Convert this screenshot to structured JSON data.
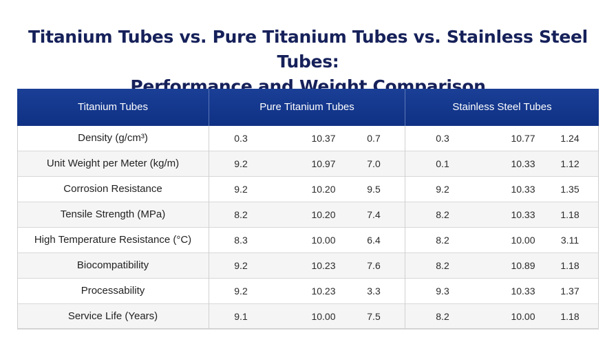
{
  "title": {
    "line1": "Titanium Tubes vs. Pure Titanium Tubes vs. Stainless Steel Tubes:",
    "line2": "Performance and Weight Comparison"
  },
  "columns": [
    "Titanium Tubes",
    "Pure Titanium Tubes",
    "Stainless Steel Tubes"
  ],
  "rows": [
    {
      "label": "Density (g/cm³)",
      "values": [
        "0.3",
        "10.37",
        "0.7",
        "0.3",
        "10.77",
        "1.24"
      ]
    },
    {
      "label": "Unit Weight per Meter (kg/m)",
      "values": [
        "9.2",
        "10.97",
        "7.0",
        "0.1",
        "10.33",
        "1.12"
      ]
    },
    {
      "label": "Corrosion Resistance",
      "values": [
        "9.2",
        "10.20",
        "9.5",
        "9.2",
        "10.33",
        "1.35"
      ]
    },
    {
      "label": "Tensile Strength (MPa)",
      "values": [
        "8.2",
        "10.20",
        "7.4",
        "8.2",
        "10.33",
        "1.18"
      ]
    },
    {
      "label": "High Temperature Resistance (°C)",
      "values": [
        "8.3",
        "10.00",
        "6.4",
        "8.2",
        "10.00",
        "3.11"
      ]
    },
    {
      "label": "Biocompatibility",
      "values": [
        "9.2",
        "10.23",
        "7.6",
        "8.2",
        "10.89",
        "1.18"
      ]
    },
    {
      "label": "Processability",
      "values": [
        "9.2",
        "10.23",
        "3.3",
        "9.3",
        "10.33",
        "1.37"
      ]
    },
    {
      "label": "Service Life (Years)",
      "values": [
        "9.1",
        "10.00",
        "7.5",
        "8.2",
        "10.00",
        "1.18"
      ]
    }
  ],
  "colors": {
    "header_bg": "#0f3184",
    "title": "#16215a",
    "row_alt": "#f5f5f5"
  }
}
